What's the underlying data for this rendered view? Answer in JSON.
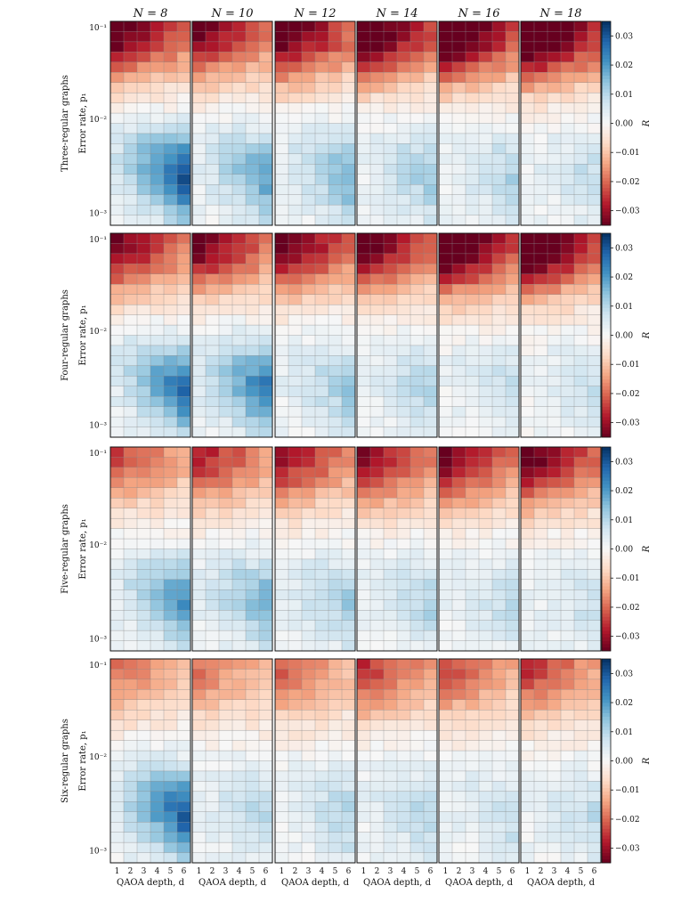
{
  "chart_data": {
    "type": "heatmap",
    "layout": "4 rows x 6 columns of heatmap panels, one colorbar per row",
    "column_titles": [
      "N = 8",
      "N = 10",
      "N = 12",
      "N = 14",
      "N = 16",
      "N = 18"
    ],
    "row_titles": [
      "Three-regular graphs",
      "Four-regular graphs",
      "Five-regular graphs",
      "Six-regular graphs"
    ],
    "x": {
      "label": "QAOA depth, d",
      "values": [
        1,
        2,
        3,
        4,
        5,
        6
      ],
      "tick_labels": [
        "1",
        "2",
        "3",
        "4",
        "5",
        "6"
      ]
    },
    "y": {
      "label": "Error rate, p₁",
      "scale": "log",
      "range": [
        0.001,
        0.1
      ],
      "cells": 20,
      "tick_labels": [
        "10⁻¹",
        "10⁻²",
        "10⁻³"
      ]
    },
    "colorbar": {
      "label": "R",
      "range": [
        -0.035,
        0.035
      ],
      "colormap": "RdBu",
      "tick_values": [
        -0.03,
        -0.02,
        -0.01,
        0.0,
        0.01,
        0.02,
        0.03
      ],
      "tick_labels": [
        "−0.03",
        "−0.02",
        "−0.01",
        "0.00",
        "0.01",
        "0.02",
        "0.03"
      ]
    },
    "colormap_stops": [
      "#67001f",
      "#b2182b",
      "#d6604d",
      "#f4a582",
      "#fddbc7",
      "#f7f7f7",
      "#d1e5f0",
      "#92c5de",
      "#4393c3",
      "#2166ac",
      "#053061"
    ],
    "panel_params": [
      [
        {
          "top": -0.032,
          "ridge": 0.03
        },
        {
          "top": -0.03,
          "ridge": 0.018
        },
        {
          "top": -0.034,
          "ridge": 0.016
        },
        {
          "top": -0.037,
          "ridge": 0.012
        },
        {
          "top": -0.04,
          "ridge": 0.01
        },
        {
          "top": -0.042,
          "ridge": 0.008
        }
      ],
      [
        {
          "top": -0.03,
          "ridge": 0.026
        },
        {
          "top": -0.031,
          "ridge": 0.024
        },
        {
          "top": -0.033,
          "ridge": 0.012
        },
        {
          "top": -0.033,
          "ridge": 0.01
        },
        {
          "top": -0.04,
          "ridge": 0.008
        },
        {
          "top": -0.04,
          "ridge": 0.007
        }
      ],
      [
        {
          "top": -0.02,
          "ridge": 0.02
        },
        {
          "top": -0.024,
          "ridge": 0.016
        },
        {
          "top": -0.026,
          "ridge": 0.012
        },
        {
          "top": -0.028,
          "ridge": 0.01
        },
        {
          "top": -0.03,
          "ridge": 0.008
        },
        {
          "top": -0.032,
          "ridge": 0.007
        }
      ],
      [
        {
          "top": -0.016,
          "ridge": 0.028
        },
        {
          "top": -0.016,
          "ridge": 0.01
        },
        {
          "top": -0.018,
          "ridge": 0.01
        },
        {
          "top": -0.022,
          "ridge": 0.01
        },
        {
          "top": -0.02,
          "ridge": 0.008
        },
        {
          "top": -0.022,
          "ridge": 0.008
        }
      ]
    ]
  }
}
